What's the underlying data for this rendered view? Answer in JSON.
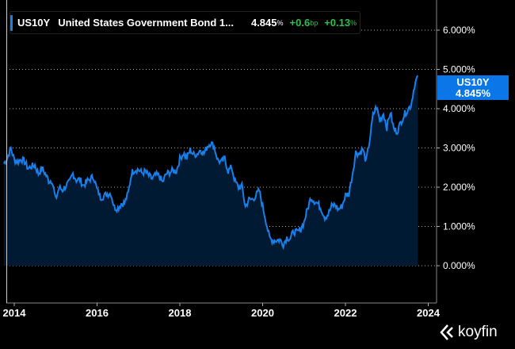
{
  "header": {
    "ticker": "US10Y",
    "name": "United States Government Bond 1...",
    "value": "4.845",
    "value_unit": "%",
    "change_bp": "+0.6",
    "change_bp_unit": "bp",
    "change_pct": "+0.13",
    "change_pct_unit": "%"
  },
  "price_tag": {
    "ticker": "US10Y",
    "value": "4.845%"
  },
  "brand": "koyfin",
  "colors": {
    "line": "#1a7fe8",
    "fill": "#001a33",
    "positive": "#2fbf4f",
    "tag": "#0a76e8"
  },
  "chart_data": {
    "type": "area",
    "title": "",
    "xlabel": "",
    "ylabel": "",
    "x_ticks": [
      "2014",
      "2016",
      "2018",
      "2020",
      "2022",
      "2024"
    ],
    "y_ticks": [
      "0.000%",
      "1.000%",
      "2.000%",
      "3.000%",
      "4.000%",
      "5.000%",
      "6.000%"
    ],
    "ylim": [
      0,
      6
    ],
    "xlim": [
      2013.8,
      2024.1
    ],
    "grid": "horizontal-dotted",
    "start": "2013-10",
    "frequency": "monthly",
    "series": [
      {
        "values": [
          2.6,
          2.75,
          3.0,
          2.7,
          2.65,
          2.72,
          2.65,
          2.48,
          2.53,
          2.56,
          2.34,
          2.49,
          2.34,
          2.16,
          2.17,
          1.68,
          1.99,
          1.93,
          2.04,
          2.12,
          2.35,
          2.18,
          2.2,
          2.04,
          2.14,
          2.21,
          2.27,
          1.94,
          1.74,
          1.78,
          1.83,
          1.84,
          1.49,
          1.46,
          1.58,
          1.6,
          1.84,
          2.37,
          2.45,
          2.45,
          2.36,
          2.4,
          2.29,
          2.21,
          2.31,
          2.29,
          2.12,
          2.33,
          2.38,
          2.42,
          2.41,
          2.72,
          2.87,
          2.74,
          2.95,
          2.83,
          2.85,
          2.96,
          2.86,
          3.05,
          3.14,
          3.01,
          2.69,
          2.63,
          2.73,
          2.41,
          2.51,
          2.14,
          2.0,
          2.02,
          1.5,
          1.68,
          1.69,
          1.78,
          1.92,
          1.51,
          1.13,
          0.7,
          0.64,
          0.65,
          0.66,
          0.55,
          0.72,
          0.69,
          0.88,
          0.84,
          0.93,
          1.11,
          1.44,
          1.74,
          1.65,
          1.58,
          1.45,
          1.24,
          1.31,
          1.52,
          1.55,
          1.43,
          1.52,
          1.79,
          1.83,
          2.32,
          2.89,
          2.85,
          2.98,
          2.65,
          3.19,
          3.83,
          4.05,
          3.68,
          3.88,
          3.52,
          3.92,
          3.48,
          3.42,
          3.64,
          3.84,
          3.97,
          4.09,
          4.59,
          4.845
        ]
      }
    ]
  }
}
